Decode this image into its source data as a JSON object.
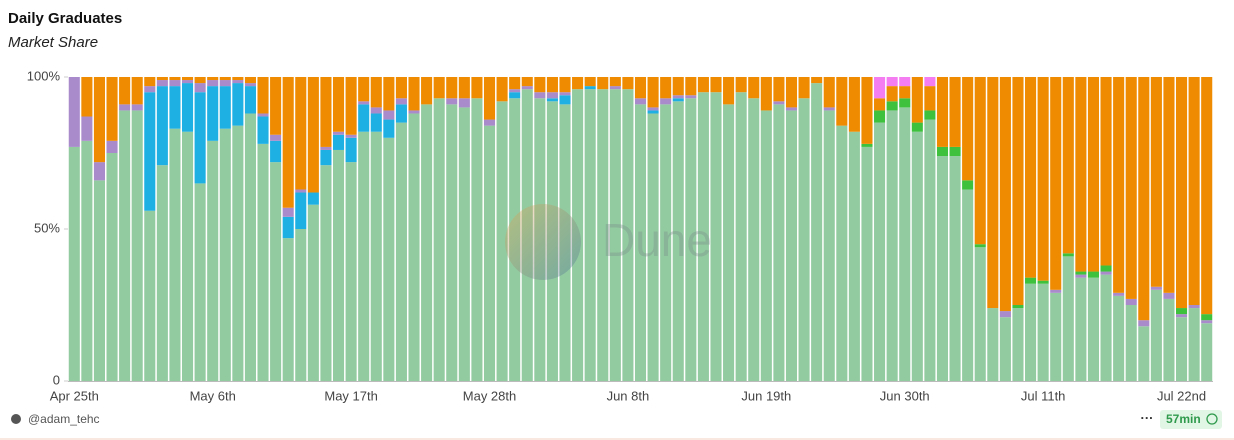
{
  "chart_data": {
    "type": "stacked_bar_100",
    "title": "Daily Graduates",
    "subtitle": "Market Share",
    "categories": [
      "Apr 25th",
      null,
      null,
      null,
      null,
      null,
      null,
      null,
      null,
      null,
      null,
      "May 6th",
      null,
      null,
      null,
      null,
      null,
      null,
      null,
      null,
      null,
      null,
      "May 17th",
      null,
      null,
      null,
      null,
      null,
      null,
      null,
      null,
      null,
      null,
      "May 28th",
      null,
      null,
      null,
      null,
      null,
      null,
      null,
      null,
      null,
      null,
      "Jun 8th",
      null,
      null,
      null,
      null,
      null,
      null,
      null,
      null,
      null,
      null,
      "Jun 19th",
      null,
      null,
      null,
      null,
      null,
      null,
      null,
      null,
      null,
      null,
      "Jun 30th",
      null,
      null,
      null,
      null,
      null,
      null,
      null,
      null,
      null,
      null,
      "Jul 11th",
      null,
      null,
      null,
      null,
      null,
      null,
      null,
      null,
      null,
      null,
      "Jul 22nd",
      null,
      null
    ],
    "series": [
      {
        "color": "#93cba1",
        "values": [
          77,
          79,
          66,
          75,
          89,
          89,
          56,
          71,
          83,
          82,
          65,
          79,
          83,
          84,
          88,
          78,
          72,
          47,
          50,
          58,
          71,
          76,
          72,
          82,
          82,
          80,
          85,
          88,
          91,
          93,
          91,
          90,
          93,
          84,
          92,
          93,
          96,
          93,
          92,
          91,
          96,
          96,
          96,
          96,
          96,
          91,
          88,
          91,
          92,
          93,
          95,
          95,
          91,
          95,
          93,
          89,
          91,
          89,
          93,
          98,
          89,
          84,
          82,
          77,
          85,
          89,
          90,
          82,
          86,
          74,
          74,
          63,
          44,
          24,
          21,
          24,
          32,
          32,
          29,
          41,
          34,
          34,
          35,
          28,
          25,
          18,
          30,
          27,
          21,
          24,
          19
        ]
      },
      {
        "color": "#1fb0e3",
        "values": [
          0,
          0,
          0,
          0,
          0,
          0,
          39,
          26,
          14,
          16,
          30,
          18,
          14,
          14,
          9,
          9,
          7,
          7,
          12,
          4,
          5,
          5,
          8,
          9,
          6,
          6,
          6,
          0,
          0,
          0,
          0,
          0,
          0,
          0,
          0,
          2,
          0,
          0,
          1,
          3,
          0,
          1,
          0,
          0,
          0,
          0,
          1,
          0,
          1,
          0,
          0,
          0,
          0,
          0,
          0,
          0,
          0,
          0,
          0,
          0,
          0,
          0,
          0,
          0,
          0,
          0,
          0,
          0,
          0,
          0,
          0,
          0,
          0,
          0,
          0,
          0,
          0,
          0,
          0,
          0,
          0,
          0,
          0,
          0,
          0,
          0,
          0,
          0,
          0,
          0,
          0
        ]
      },
      {
        "color": "#a98bcb",
        "values": [
          23,
          8,
          6,
          4,
          2,
          2,
          2,
          2,
          2,
          1,
          3,
          2,
          2,
          1,
          1,
          1,
          2,
          3,
          1,
          0,
          1,
          1,
          1,
          1,
          2,
          3,
          2,
          1,
          0,
          0,
          2,
          3,
          0,
          2,
          0,
          1,
          1,
          2,
          2,
          1,
          0,
          0,
          0,
          1,
          0,
          2,
          1,
          2,
          1,
          1,
          0,
          0,
          0,
          0,
          0,
          0,
          1,
          1,
          0,
          0,
          1,
          0,
          0,
          0,
          0,
          0,
          0,
          0,
          0,
          0,
          0,
          0,
          0,
          0,
          2,
          0,
          0,
          0,
          1,
          0,
          1,
          0,
          1,
          1,
          2,
          2,
          1,
          2,
          1,
          1,
          1
        ]
      },
      {
        "color": "#3ec23e",
        "values": [
          0,
          0,
          0,
          0,
          0,
          0,
          0,
          0,
          0,
          0,
          0,
          0,
          0,
          0,
          0,
          0,
          0,
          0,
          0,
          0,
          0,
          0,
          0,
          0,
          0,
          0,
          0,
          0,
          0,
          0,
          0,
          0,
          0,
          0,
          0,
          0,
          0,
          0,
          0,
          0,
          0,
          0,
          0,
          0,
          0,
          0,
          0,
          0,
          0,
          0,
          0,
          0,
          0,
          0,
          0,
          0,
          0,
          0,
          0,
          0,
          0,
          0,
          0,
          1,
          4,
          3,
          3,
          3,
          3,
          3,
          3,
          3,
          1,
          0,
          0,
          1,
          2,
          1,
          0,
          1,
          1,
          2,
          2,
          0,
          0,
          0,
          0,
          0,
          2,
          0,
          2
        ]
      },
      {
        "color": "#ef8b00",
        "values": [
          0,
          13,
          28,
          21,
          9,
          9,
          3,
          1,
          1,
          1,
          2,
          1,
          1,
          1,
          2,
          12,
          19,
          43,
          37,
          38,
          23,
          18,
          19,
          8,
          10,
          11,
          7,
          11,
          9,
          7,
          7,
          7,
          7,
          14,
          8,
          4,
          3,
          5,
          5,
          5,
          4,
          3,
          4,
          3,
          4,
          7,
          10,
          7,
          6,
          6,
          5,
          5,
          9,
          5,
          7,
          11,
          8,
          10,
          7,
          2,
          10,
          16,
          18,
          22,
          4,
          5,
          4,
          15,
          8,
          23,
          23,
          34,
          55,
          76,
          77,
          75,
          66,
          67,
          70,
          58,
          64,
          64,
          62,
          71,
          73,
          80,
          69,
          71,
          76,
          75,
          78
        ]
      },
      {
        "color": "#f57df2",
        "values": [
          0,
          0,
          0,
          0,
          0,
          0,
          0,
          0,
          0,
          0,
          0,
          0,
          0,
          0,
          0,
          0,
          0,
          0,
          0,
          0,
          0,
          0,
          0,
          0,
          0,
          0,
          0,
          0,
          0,
          0,
          0,
          0,
          0,
          0,
          0,
          0,
          0,
          0,
          0,
          0,
          0,
          0,
          0,
          0,
          0,
          0,
          0,
          0,
          0,
          0,
          0,
          0,
          0,
          0,
          0,
          0,
          0,
          0,
          0,
          0,
          0,
          0,
          0,
          0,
          7,
          3,
          3,
          0,
          3,
          0,
          0,
          0,
          0,
          0,
          0,
          0,
          0,
          0,
          0,
          0,
          0,
          0,
          0,
          0,
          0,
          0,
          0,
          0,
          0,
          0,
          0
        ]
      }
    ],
    "ylim": [
      0,
      100
    ],
    "yticks": [
      0,
      {
        "value": 50,
        "label": "50%"
      },
      {
        "value": 100,
        "label": "100%"
      }
    ],
    "grid": false,
    "watermark": "Dune"
  },
  "footer": {
    "author": "@adam_tehc",
    "menu": "···",
    "updated": "57min"
  }
}
